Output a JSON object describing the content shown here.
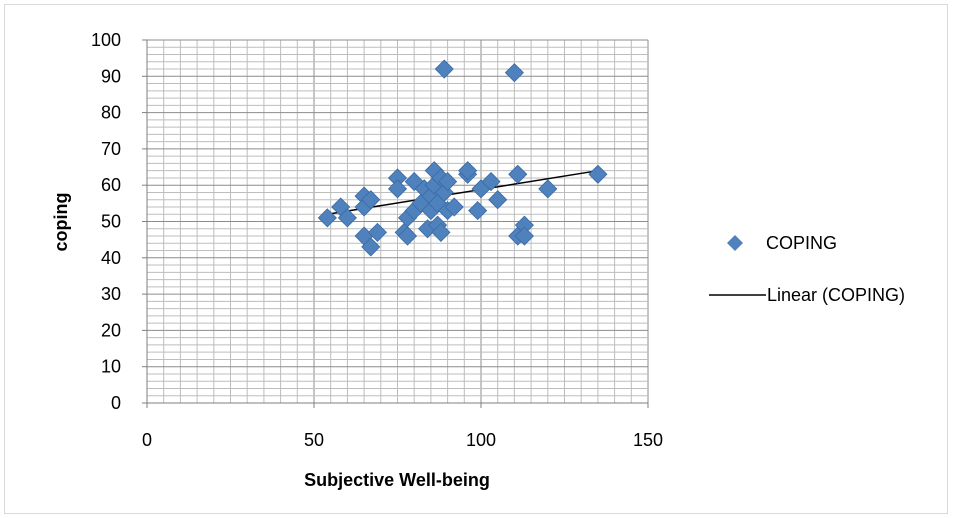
{
  "chart_data": {
    "type": "scatter",
    "title": "",
    "xlabel": "Subjective Well-being",
    "ylabel": "coping",
    "xlim": [
      0,
      150
    ],
    "ylim": [
      0,
      100
    ],
    "x_ticks": [
      "0",
      "50",
      "100",
      "150"
    ],
    "y_ticks": [
      "0",
      "10",
      "20",
      "30",
      "40",
      "50",
      "60",
      "70",
      "80",
      "90",
      "100"
    ],
    "x_minor_step": 5,
    "y_minor_step": 2,
    "grid": true,
    "legend_position": "right",
    "marker_color": "#4F81BD",
    "series": [
      {
        "name": "COPING",
        "marker": "diamond",
        "points": [
          [
            54,
            51
          ],
          [
            58,
            54
          ],
          [
            60,
            51
          ],
          [
            65,
            57
          ],
          [
            65,
            54
          ],
          [
            65,
            46
          ],
          [
            67,
            56
          ],
          [
            67,
            43
          ],
          [
            69,
            47
          ],
          [
            75,
            62
          ],
          [
            75,
            59
          ],
          [
            77,
            47
          ],
          [
            78,
            46
          ],
          [
            78,
            51
          ],
          [
            80,
            61
          ],
          [
            80,
            53
          ],
          [
            82,
            55
          ],
          [
            83,
            59
          ],
          [
            84,
            48
          ],
          [
            85,
            57
          ],
          [
            85,
            53
          ],
          [
            86,
            64
          ],
          [
            86,
            60
          ],
          [
            87,
            49
          ],
          [
            87,
            55
          ],
          [
            88,
            47
          ],
          [
            88,
            62
          ],
          [
            89,
            92
          ],
          [
            89,
            58
          ],
          [
            90,
            61
          ],
          [
            90,
            53
          ],
          [
            92,
            54
          ],
          [
            96,
            63
          ],
          [
            96,
            64
          ],
          [
            99,
            53
          ],
          [
            100,
            59
          ],
          [
            103,
            61
          ],
          [
            105,
            56
          ],
          [
            110,
            91
          ],
          [
            111,
            63
          ],
          [
            111,
            46
          ],
          [
            113,
            49
          ],
          [
            113,
            46
          ],
          [
            120,
            59
          ],
          [
            135,
            63
          ]
        ]
      }
    ],
    "trendline": {
      "name": "Linear (COPING)",
      "type": "linear",
      "color": "#000000",
      "x": [
        54,
        135
      ],
      "y": [
        52,
        64
      ]
    }
  }
}
